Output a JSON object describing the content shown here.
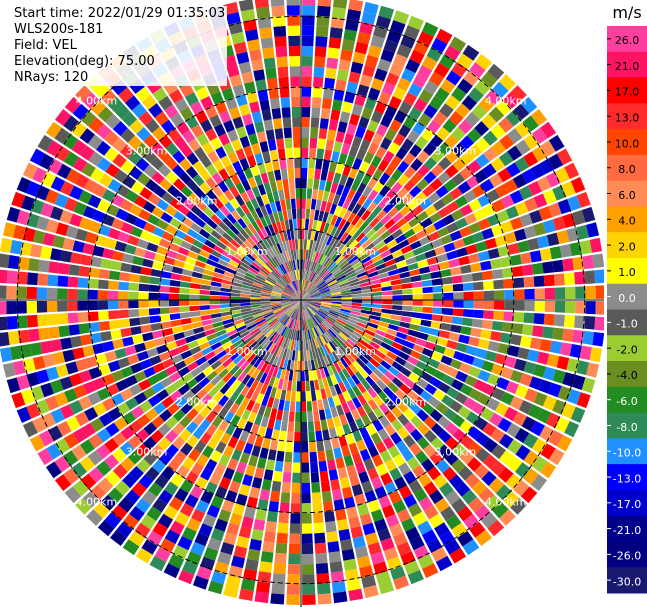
{
  "header": {
    "start_time": "Start time: 2022/01/29 01:35:03",
    "instrument": "WLS200s-181",
    "field": "Field: VEL",
    "elevation": "Elevation(deg): 75.00",
    "nrays": "NRays: 120"
  },
  "chart_data": {
    "type": "heatmap",
    "subtype": "polar-ppi",
    "rays": 120,
    "max_range_km": 4.3,
    "range_rings_km": [
      1.0,
      2.0,
      3.0,
      4.0
    ],
    "ring_labels": [
      "1.00km",
      "2.00km",
      "3.00km",
      "4.00km"
    ],
    "colorbar": {
      "unit": "m/s",
      "ticks": [
        "26.0",
        "21.0",
        "17.0",
        "13.0",
        "10.0",
        "8.0",
        "6.0",
        "4.0",
        "2.0",
        "1.0",
        "0.0",
        "-1.0",
        "-2.0",
        "-4.0",
        "-6.0",
        "-8.0",
        "-10.0",
        "-13.0",
        "-17.0",
        "-21.0",
        "-26.0",
        "-30.0"
      ],
      "colors": [
        "#ff3f9f",
        "#ff1464",
        "#ff0000",
        "#ff2b2b",
        "#ff4500",
        "#ff6a40",
        "#ff8c55",
        "#ff9f00",
        "#ffd400",
        "#ffff00",
        "#8c8c8c",
        "#5a5a5a",
        "#9acd32",
        "#6b8e23",
        "#228b22",
        "#2e8b57",
        "#1e90ff",
        "#0000ff",
        "#0000cd",
        "#00008b",
        "#000080",
        "#191970"
      ]
    }
  }
}
